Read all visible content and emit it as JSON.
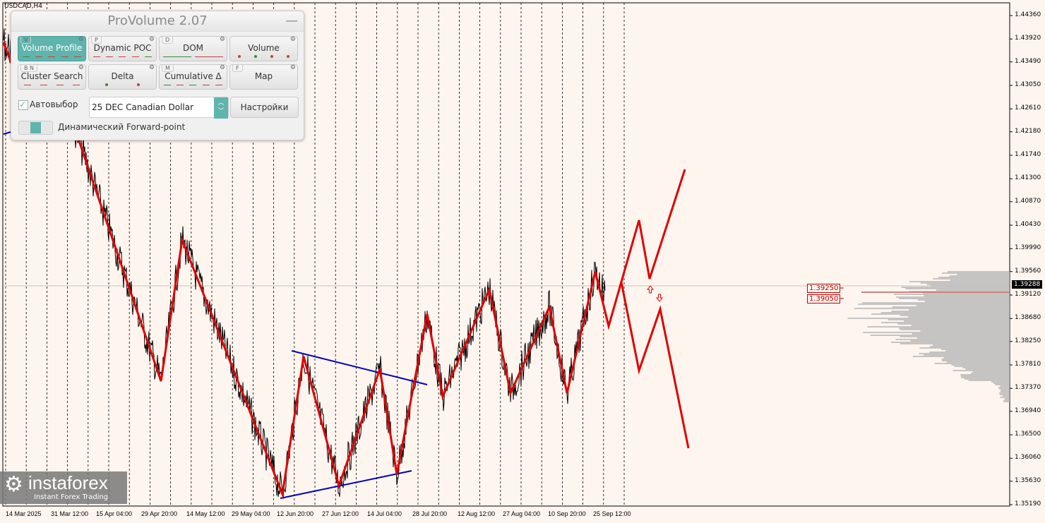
{
  "chart": {
    "symbol": "USDCAD,H4",
    "current_price": "1.39288",
    "price_axis": [
      "1.44360",
      "1.43920",
      "1.43490",
      "1.43050",
      "1.42610",
      "1.42180",
      "1.41740",
      "1.41300",
      "1.40870",
      "1.40430",
      "1.39990",
      "1.39560",
      "1.39120",
      "1.38680",
      "1.38250",
      "1.37810",
      "1.37370",
      "1.36940",
      "1.36500",
      "1.36060",
      "1.35630",
      "1.35190"
    ],
    "time_axis": [
      "14 Mar 2025",
      "31 Mar 12:00",
      "15 Apr 04:00",
      "29 Apr 20:00",
      "14 May 12:00",
      "29 May 04:00",
      "12 Jun 20:00",
      "27 Jun 12:00",
      "14 Jul 04:00",
      "28 Jul 20:00",
      "12 Aug 12:00",
      "27 Aug 04:00",
      "10 Sep 20:00",
      "25 Sep 12:00"
    ],
    "levels": [
      "1.39250",
      "1.39050"
    ],
    "colors": {
      "background": "#fff5ef",
      "zigzag": "#e00000",
      "trendline": "#0000c0",
      "price": "#000000",
      "profile": "#b4b4b4",
      "poc": "#d08080"
    }
  },
  "panel": {
    "title": "ProVolume 2.07",
    "modules": [
      {
        "key": "V",
        "label": "Volume Profile",
        "active": true
      },
      {
        "key": "P",
        "label": "Dynamic POC"
      },
      {
        "key": "D",
        "label": "DOM"
      },
      {
        "key": "",
        "label": "Volume"
      },
      {
        "key": "B  N",
        "label": "Cluster Search"
      },
      {
        "key": "",
        "label": "Delta"
      },
      {
        "key": "M",
        "label": "Cumulative Δ"
      },
      {
        "key": "F",
        "label": "Map"
      }
    ],
    "autoselect_label": "Автовыбор",
    "autoselect_checked": true,
    "instrument": "25 DEC Canadian Dollar",
    "settings_label": "Настройки",
    "forward_point_label": "Динамический Forward-point"
  },
  "logo": {
    "name": "instaforex",
    "tagline": "Instant Forex Trading"
  }
}
